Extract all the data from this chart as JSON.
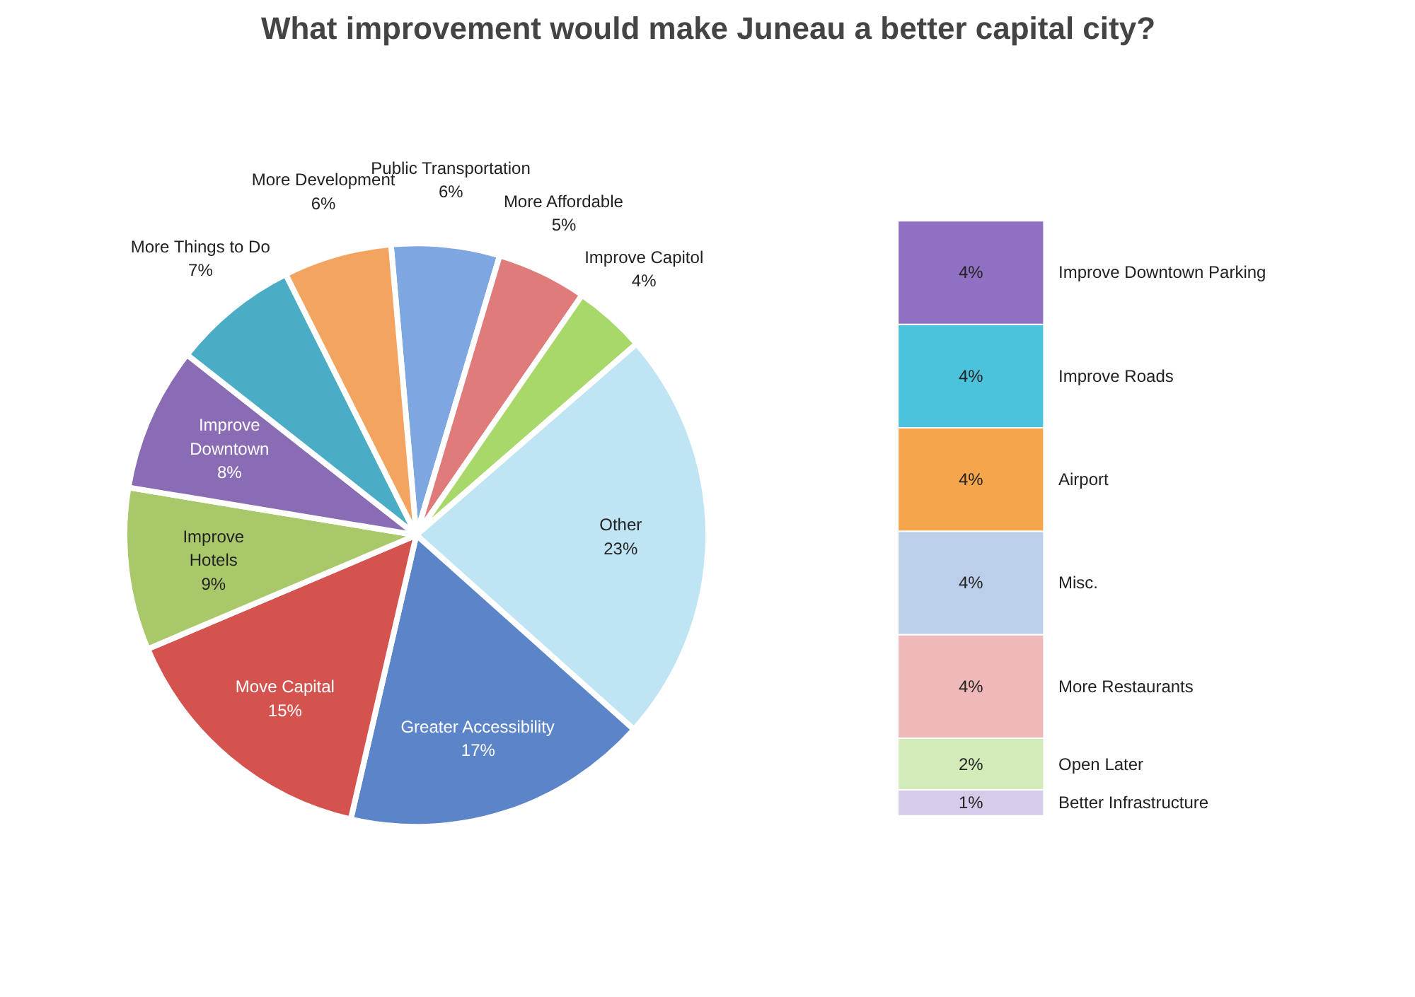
{
  "chart_data": [
    {
      "type": "pie",
      "title": "What improvement would make Juneau a better capital city?",
      "categories": [
        "Public Transportation",
        "More Affordable",
        "Improve Capitol",
        "Other",
        "Greater Accessibility",
        "Move Capital",
        "Improve Hotels",
        "Improve Downtown",
        "More Things to Do",
        "More Development"
      ],
      "values": [
        6,
        5,
        4,
        23,
        17,
        15,
        9,
        8,
        7,
        6
      ],
      "value_labels": [
        "6%",
        "5%",
        "4%",
        "23%",
        "17%",
        "15%",
        "9%",
        "8%",
        "7%",
        "6%"
      ],
      "colors": [
        "#7ea6e0",
        "#e07b7b",
        "#a9d86a",
        "#bfe4f3",
        "#5b85c8",
        "#d4534f",
        "#a8c86a",
        "#8a6cb5",
        "#4bacc6",
        "#f2a460"
      ]
    },
    {
      "type": "bar",
      "stacked": true,
      "categories": [
        null
      ],
      "series": [
        {
          "name": "Better Infrastructure",
          "color": "#d6cbe8",
          "values": [
            1
          ],
          "value_labels": [
            "1%"
          ]
        },
        {
          "name": "Open Later",
          "color": "#d3ebb8",
          "values": [
            2
          ],
          "value_labels": [
            "2%"
          ]
        },
        {
          "name": "More Restaurants",
          "color": "#efb9b9",
          "values": [
            4
          ],
          "value_labels": [
            "4%"
          ]
        },
        {
          "name": "Misc.",
          "color": "#bccfea",
          "values": [
            4
          ],
          "value_labels": [
            "4%"
          ]
        },
        {
          "name": "Airport",
          "color": "#f5a54a",
          "values": [
            4
          ],
          "value_labels": [
            "4%"
          ]
        },
        {
          "name": "Improve Roads",
          "color": "#4cc3dc",
          "values": [
            4
          ],
          "value_labels": [
            "4%"
          ]
        },
        {
          "name": "Improve Downtown Parking",
          "color": "#9070c2",
          "values": [
            4
          ],
          "value_labels": [
            "4%"
          ]
        }
      ]
    }
  ]
}
